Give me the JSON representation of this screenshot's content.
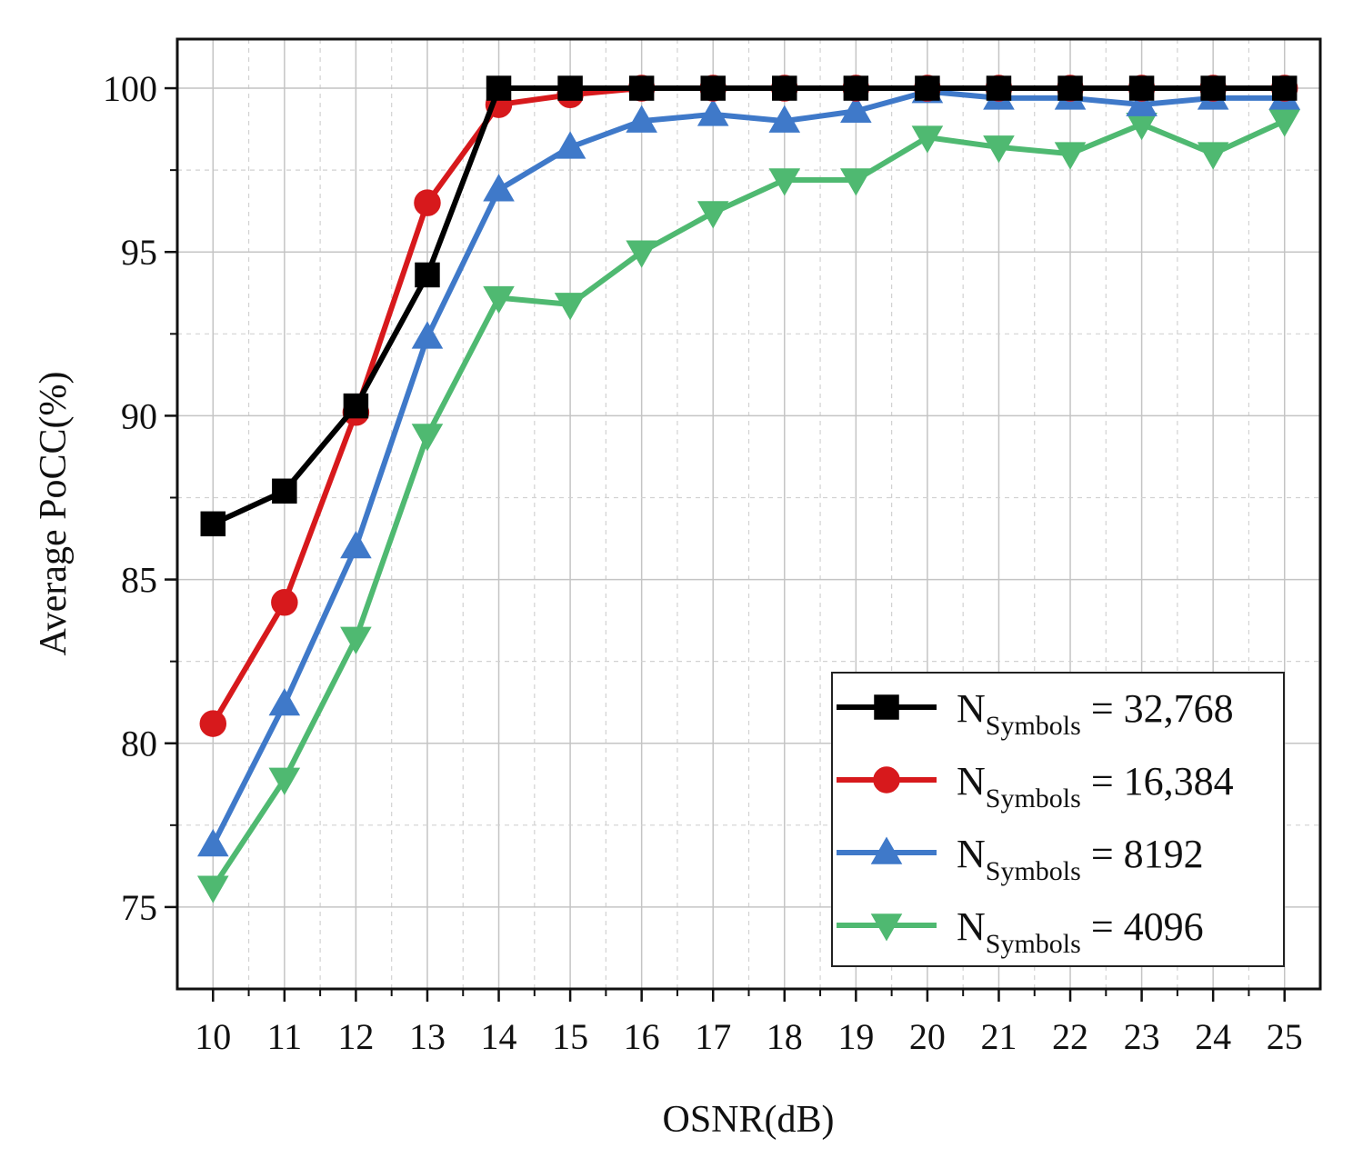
{
  "chart_data": {
    "type": "line",
    "title": "",
    "xlabel": "OSNR(dB)",
    "ylabel": "Average PoCC(%)",
    "x": [
      10,
      11,
      12,
      13,
      14,
      15,
      16,
      17,
      18,
      19,
      20,
      21,
      22,
      23,
      24,
      25
    ],
    "xlim": [
      9.5,
      25.5
    ],
    "ylim": [
      72.5,
      101.5
    ],
    "yticks": [
      75,
      80,
      85,
      90,
      95,
      100
    ],
    "grid": true,
    "legend_position": "bottom-right",
    "series": [
      {
        "name": "N_Symbols = 32,768",
        "label_main": "N",
        "label_sub": "Symbols",
        "label_value": " = 32,768",
        "color": "#000000",
        "marker": "square",
        "values": [
          86.7,
          87.7,
          90.3,
          94.3,
          100.0,
          100.0,
          100.0,
          100.0,
          100.0,
          100.0,
          100.0,
          100.0,
          100.0,
          100.0,
          100.0,
          100.0
        ]
      },
      {
        "name": "N_Symbols = 16,384",
        "label_main": "N",
        "label_sub": "Symbols",
        "label_value": " = 16,384",
        "color": "#d7191c",
        "marker": "circle",
        "values": [
          80.6,
          84.3,
          90.1,
          96.5,
          99.5,
          99.8,
          100.0,
          100.0,
          100.0,
          100.0,
          100.0,
          100.0,
          100.0,
          100.0,
          100.0,
          100.0
        ]
      },
      {
        "name": "N_Symbols = 8192",
        "label_main": "N",
        "label_sub": "Symbols",
        "label_value": " = 8192",
        "color": "#3f79c9",
        "marker": "triangle-up",
        "values": [
          76.9,
          81.2,
          86.0,
          92.4,
          96.9,
          98.2,
          99.0,
          99.2,
          99.0,
          99.3,
          99.9,
          99.7,
          99.7,
          99.5,
          99.7,
          99.7
        ]
      },
      {
        "name": "N_Symbols = 4096",
        "label_main": "N",
        "label_sub": "Symbols",
        "label_value": " = 4096",
        "color": "#4fb971",
        "marker": "triangle-down",
        "values": [
          75.6,
          78.9,
          83.2,
          89.4,
          93.6,
          93.4,
          95.0,
          96.2,
          97.2,
          97.2,
          98.5,
          98.2,
          98.0,
          98.9,
          98.0,
          99.0
        ]
      }
    ]
  }
}
